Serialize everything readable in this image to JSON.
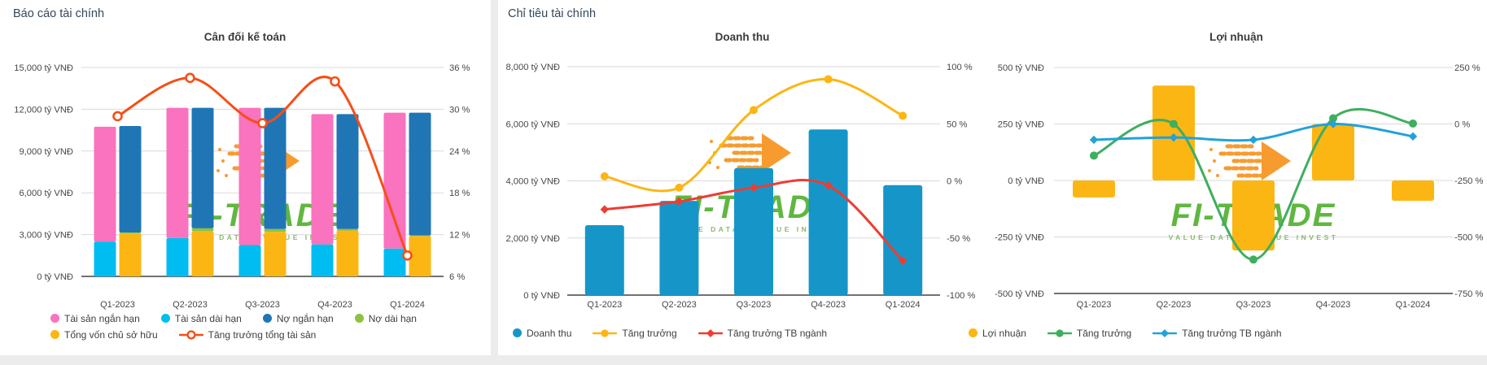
{
  "page": {
    "background": "#ececec",
    "panel_background": "#ffffff",
    "grid_color": "#d9d9d9",
    "axis_line_color": "#434343",
    "header_color": "#33475b",
    "label_color": "#474747"
  },
  "panels": [
    {
      "header": "Báo cáo tài chính"
    },
    {
      "header": "Chỉ tiêu tài chính"
    }
  ],
  "watermark": {
    "brand": "FI-TRADE",
    "tagline": "VALUE DATA - VALUE INVEST",
    "brand_color": "#55b232",
    "tagline_color": "#80b561",
    "arrow_color": "#f79420"
  },
  "chart_data": [
    {
      "type": "bar",
      "subtype": "stacked-pair-columns-with-line-dual-axis",
      "title": "Cân đối kế toán",
      "categories": [
        "Q1-2023",
        "Q2-2023",
        "Q3-2023",
        "Q4-2023",
        "Q1-2024"
      ],
      "left_axis": {
        "unit": "tỷ VNĐ",
        "min": 0,
        "max": 15000,
        "ticks": [
          15000,
          12000,
          9000,
          6000,
          3000,
          0
        ],
        "tick_labels": [
          "15,000 tỷ VNĐ",
          "12,000 tỷ VNĐ",
          "9,000 tỷ VNĐ",
          "6,000 tỷ VNĐ",
          "3,000 tỷ VNĐ",
          "0 tỷ VNĐ"
        ]
      },
      "right_axis": {
        "unit": "%",
        "min": 6,
        "max": 36,
        "ticks": [
          36,
          30,
          24,
          18,
          12,
          6
        ],
        "tick_labels": [
          "36 %",
          "30 %",
          "24 %",
          "18 %",
          "12 %",
          "6 %"
        ]
      },
      "stacks": [
        {
          "name": "assets",
          "series": [
            {
              "name": "Tài sản dài hạn",
              "color": "#00bdf1",
              "values": [
                2500,
                2750,
                2250,
                2300,
                2000
              ]
            },
            {
              "name": "Tài sản ngắn hạn",
              "color": "#f973be",
              "values": [
                8250,
                9350,
                9850,
                9350,
                9750
              ]
            }
          ]
        },
        {
          "name": "liabilities-equity",
          "series": [
            {
              "name": "Tổng vốn chủ sở hữu",
              "color": "#fcb614",
              "values": [
                3100,
                3250,
                3200,
                3300,
                2900
              ]
            },
            {
              "name": "Nợ dài hạn",
              "color": "#8ac43f",
              "values": [
                50,
                200,
                200,
                100,
                50
              ]
            },
            {
              "name": "Nợ ngắn hạn",
              "color": "#2076b5",
              "values": [
                7650,
                8650,
                8700,
                8250,
                8800
              ]
            }
          ]
        }
      ],
      "lines": [
        {
          "name": "Tăng trưởng tổng tài sản",
          "color": "#f64e18",
          "marker": "circle-open",
          "axis": "right",
          "values": [
            29,
            34.5,
            28,
            34,
            9
          ]
        }
      ],
      "legend": [
        {
          "label": "Tài sản ngắn hạn",
          "marker": "dot",
          "color": "#f973be"
        },
        {
          "label": "Tài sản dài hạn",
          "marker": "dot",
          "color": "#00bdf1"
        },
        {
          "label": "Nợ ngắn hạn",
          "marker": "dot",
          "color": "#2076b5"
        },
        {
          "label": "Nợ dài hạn",
          "marker": "dot",
          "color": "#8ac43f"
        },
        {
          "label": "Tổng vốn chủ sở hữu",
          "marker": "dot",
          "color": "#fcb614"
        },
        {
          "label": "Tăng trưởng tổng tài sản",
          "marker": "line-circle-open",
          "color": "#f64e18"
        }
      ]
    },
    {
      "type": "bar",
      "subtype": "columns-with-lines-dual-axis",
      "title": "Doanh thu",
      "categories": [
        "Q1-2023",
        "Q2-2023",
        "Q3-2023",
        "Q4-2023",
        "Q1-2024"
      ],
      "left_axis": {
        "unit": "tỷ VNĐ",
        "min": 0,
        "max": 8000,
        "ticks": [
          8000,
          6000,
          4000,
          2000,
          0
        ],
        "tick_labels": [
          "8,000 tỷ VNĐ",
          "6,000 tỷ VNĐ",
          "4,000 tỷ VNĐ",
          "2,000 tỷ VNĐ",
          "0 tỷ VNĐ"
        ]
      },
      "right_axis": {
        "unit": "%",
        "min": -100,
        "max": 100,
        "ticks": [
          100,
          50,
          0,
          -50,
          -100
        ],
        "tick_labels": [
          "100 %",
          "50 %",
          "0 %",
          "-50 %",
          "-100 %"
        ]
      },
      "bars": {
        "name": "Doanh thu",
        "color": "#1696c8",
        "values": [
          2450,
          3300,
          4450,
          5800,
          3850
        ]
      },
      "lines": [
        {
          "name": "Tăng trưởng",
          "color": "#fcb614",
          "marker": "circle",
          "axis": "right",
          "values": [
            4,
            -6,
            62,
            89,
            57
          ]
        },
        {
          "name": "Tăng trưởng TB ngành",
          "color": "#ed3c32",
          "marker": "diamond",
          "axis": "right",
          "values": [
            -25,
            -18,
            -6,
            -4,
            -70
          ]
        }
      ],
      "legend": [
        {
          "label": "Doanh thu",
          "marker": "dot",
          "color": "#1696c8"
        },
        {
          "label": "Tăng trưởng",
          "marker": "line-circle",
          "color": "#fcb614"
        },
        {
          "label": "Tăng trưởng TB ngành",
          "marker": "line-diamond",
          "color": "#ed3c32"
        }
      ]
    },
    {
      "type": "bar",
      "subtype": "columns-with-lines-dual-axis",
      "title": "Lợi nhuận",
      "categories": [
        "Q1-2023",
        "Q2-2023",
        "Q3-2023",
        "Q4-2023",
        "Q1-2024"
      ],
      "left_axis": {
        "unit": "tỷ VNĐ",
        "min": -500,
        "max": 500,
        "ticks": [
          500,
          250,
          0,
          -250,
          -500
        ],
        "tick_labels": [
          "500 tỷ VNĐ",
          "250 tỷ VNĐ",
          "0 tỷ VNĐ",
          "-250 tỷ VNĐ",
          "-500 tỷ VNĐ"
        ]
      },
      "right_axis": {
        "unit": "%",
        "min": -750,
        "max": 250,
        "ticks": [
          250,
          0,
          -250,
          -500,
          -750
        ],
        "tick_labels": [
          "250 %",
          "0 %",
          "-250 %",
          "-500 %",
          "-750 %"
        ]
      },
      "bars": {
        "name": "Lợi nhuận",
        "color": "#fcb614",
        "values": [
          -75,
          420,
          -310,
          250,
          -90
        ]
      },
      "lines": [
        {
          "name": "Tăng trưởng",
          "color": "#3fae5e",
          "marker": "circle",
          "axis": "right",
          "values": [
            -140,
            0,
            -600,
            25,
            2
          ]
        },
        {
          "name": "Tăng trưởng TB ngành",
          "color": "#22a2d8",
          "marker": "diamond",
          "axis": "right",
          "values": [
            -70,
            -60,
            -70,
            0,
            -55
          ]
        }
      ],
      "legend": [
        {
          "label": "Lợi nhuận",
          "marker": "dot",
          "color": "#fcb614"
        },
        {
          "label": "Tăng trưởng",
          "marker": "line-circle",
          "color": "#3fae5e"
        },
        {
          "label": "Tăng trưởng TB ngành",
          "marker": "line-diamond",
          "color": "#22a2d8"
        }
      ]
    }
  ]
}
